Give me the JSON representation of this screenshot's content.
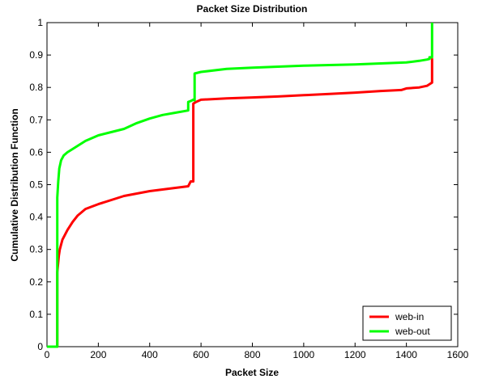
{
  "chart_data": {
    "type": "line",
    "title": "Packet Size Distribution",
    "xlabel": "Packet Size",
    "ylabel": "Cumulative Distribution Function",
    "xlim": [
      0,
      1600
    ],
    "ylim": [
      0,
      1
    ],
    "xticks": [
      0,
      200,
      400,
      600,
      800,
      1000,
      1200,
      1400,
      1600
    ],
    "yticks": [
      0,
      0.1,
      0.2,
      0.3,
      0.4,
      0.5,
      0.6,
      0.7,
      0.8,
      0.9,
      1
    ],
    "xtick_labels": [
      "0",
      "200",
      "400",
      "600",
      "800",
      "1000",
      "1200",
      "1400",
      "1600"
    ],
    "ytick_labels": [
      "0",
      "0.1",
      "0.2",
      "0.3",
      "0.4",
      "0.5",
      "0.6",
      "0.7",
      "0.8",
      "0.9",
      "1"
    ],
    "grid": false,
    "legend_position": "bottom-right",
    "series": [
      {
        "name": "web-in",
        "color": "#ff0000",
        "x": [
          0,
          40,
          40,
          46,
          50,
          60,
          80,
          100,
          120,
          150,
          200,
          300,
          400,
          500,
          550,
          560,
          570,
          570,
          580,
          600,
          700,
          800,
          900,
          1000,
          1100,
          1200,
          1300,
          1380,
          1400,
          1450,
          1480,
          1490,
          1500,
          1500
        ],
        "y": [
          0,
          0,
          0.23,
          0.28,
          0.3,
          0.33,
          0.36,
          0.385,
          0.405,
          0.425,
          0.44,
          0.465,
          0.48,
          0.49,
          0.495,
          0.51,
          0.51,
          0.75,
          0.755,
          0.762,
          0.766,
          0.769,
          0.772,
          0.776,
          0.78,
          0.784,
          0.789,
          0.792,
          0.797,
          0.8,
          0.805,
          0.81,
          0.815,
          0.89
        ]
      },
      {
        "name": "web-out",
        "color": "#00ff00",
        "x": [
          0,
          40,
          40,
          44,
          48,
          55,
          65,
          80,
          100,
          120,
          150,
          200,
          250,
          300,
          350,
          400,
          450,
          500,
          550,
          550,
          560,
          570,
          575,
          575,
          600,
          700,
          800,
          900,
          1000,
          1100,
          1200,
          1300,
          1400,
          1450,
          1480,
          1490,
          1490,
          1500,
          1500
        ],
        "y": [
          0,
          0,
          0.46,
          0.51,
          0.55,
          0.575,
          0.59,
          0.6,
          0.61,
          0.62,
          0.635,
          0.652,
          0.662,
          0.672,
          0.69,
          0.704,
          0.715,
          0.722,
          0.729,
          0.755,
          0.758,
          0.762,
          0.76,
          0.843,
          0.848,
          0.857,
          0.861,
          0.864,
          0.867,
          0.869,
          0.871,
          0.874,
          0.877,
          0.882,
          0.886,
          0.888,
          0.893,
          0.893,
          1.0
        ]
      }
    ]
  }
}
